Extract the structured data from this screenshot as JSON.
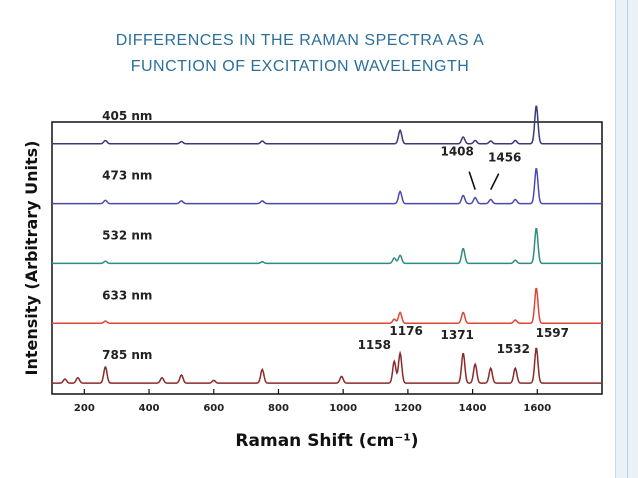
{
  "slide": {
    "title_line1": "DIFFERENCES IN THE RAMAN SPECTRA AS A",
    "title_line2": "FUNCTION OF EXCITATION WAVELENGTH",
    "title_color": "#2b6f9a"
  },
  "chart_data": {
    "type": "line",
    "xlabel": "Raman Shift (cm⁻¹)",
    "ylabel": "Intensity (Arbitrary Units)",
    "xlim": [
      100,
      1800
    ],
    "x_ticks": [
      200,
      400,
      600,
      800,
      1000,
      1200,
      1400,
      1600
    ],
    "y_ticks": [],
    "grid": false,
    "legend": "inline labels above each trace",
    "series": [
      {
        "name": "405 nm",
        "color": "#3a3a7a",
        "baseline": 0.92,
        "peaks": [
          [
            265,
            0.012
          ],
          [
            500,
            0.008
          ],
          [
            750,
            0.01
          ],
          [
            1176,
            0.05
          ],
          [
            1371,
            0.025
          ],
          [
            1408,
            0.012
          ],
          [
            1456,
            0.01
          ],
          [
            1532,
            0.012
          ],
          [
            1597,
            0.14
          ]
        ]
      },
      {
        "name": "473 nm",
        "color": "#4a4ab0",
        "baseline": 0.7,
        "peaks": [
          [
            265,
            0.012
          ],
          [
            500,
            0.01
          ],
          [
            750,
            0.01
          ],
          [
            1176,
            0.045
          ],
          [
            1371,
            0.03
          ],
          [
            1408,
            0.022
          ],
          [
            1456,
            0.015
          ],
          [
            1532,
            0.015
          ],
          [
            1597,
            0.13
          ]
        ]
      },
      {
        "name": "532 nm",
        "color": "#2e8c80",
        "baseline": 0.48,
        "peaks": [
          [
            265,
            0.008
          ],
          [
            750,
            0.006
          ],
          [
            1158,
            0.02
          ],
          [
            1176,
            0.03
          ],
          [
            1371,
            0.055
          ],
          [
            1532,
            0.012
          ],
          [
            1597,
            0.13
          ]
        ]
      },
      {
        "name": "633 nm",
        "color": "#e04535",
        "baseline": 0.26,
        "peaks": [
          [
            265,
            0.008
          ],
          [
            1158,
            0.015
          ],
          [
            1176,
            0.04
          ],
          [
            1371,
            0.04
          ],
          [
            1532,
            0.012
          ],
          [
            1597,
            0.13
          ]
        ]
      },
      {
        "name": "785 nm",
        "color": "#8b2a2a",
        "baseline": 0.04,
        "peaks": [
          [
            140,
            0.015
          ],
          [
            180,
            0.02
          ],
          [
            265,
            0.06
          ],
          [
            440,
            0.02
          ],
          [
            500,
            0.03
          ],
          [
            600,
            0.01
          ],
          [
            750,
            0.05
          ],
          [
            995,
            0.025
          ],
          [
            1158,
            0.08
          ],
          [
            1176,
            0.11
          ],
          [
            1371,
            0.11
          ],
          [
            1408,
            0.07
          ],
          [
            1456,
            0.055
          ],
          [
            1532,
            0.055
          ],
          [
            1597,
            0.13
          ]
        ]
      }
    ],
    "annotations": [
      {
        "text": "1408",
        "x": 1408,
        "series": "473 nm"
      },
      {
        "text": "1456",
        "x": 1456,
        "series": "473 nm"
      },
      {
        "text": "1158",
        "x": 1158,
        "series": "785 nm"
      },
      {
        "text": "1176",
        "x": 1176,
        "series": "785 nm"
      },
      {
        "text": "1371",
        "x": 1371,
        "series": "785 nm"
      },
      {
        "text": "1532",
        "x": 1532,
        "series": "785 nm"
      },
      {
        "text": "1597",
        "x": 1597,
        "series": "785 nm"
      }
    ]
  }
}
